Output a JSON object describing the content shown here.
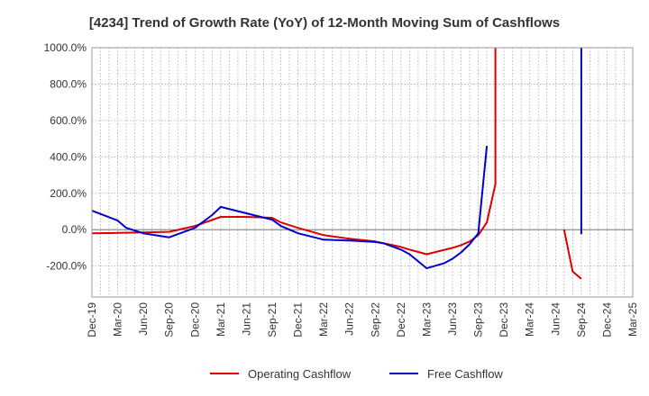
{
  "chart_data": {
    "type": "line",
    "title": "[4234]  Trend of Growth Rate (YoY) of 12-Month Moving Sum of Cashflows",
    "xlabel": "",
    "ylabel": "",
    "ylim": [
      -370,
      1000
    ],
    "y_ticks": [
      1000,
      800,
      600,
      400,
      200,
      0,
      -200
    ],
    "y_tick_labels": [
      "1000.0%",
      "800.0%",
      "600.0%",
      "400.0%",
      "200.0%",
      "0.0%",
      "-200.0%"
    ],
    "x_tick_labels": [
      "Dec-19",
      "Mar-20",
      "Jun-20",
      "Sep-20",
      "Dec-20",
      "Mar-21",
      "Jun-21",
      "Sep-21",
      "Dec-21",
      "Mar-22",
      "Jun-22",
      "Sep-22",
      "Dec-22",
      "Mar-23",
      "Jun-23",
      "Sep-23",
      "Dec-23",
      "Mar-24",
      "Jun-24",
      "Sep-24",
      "Dec-24",
      "Mar-25"
    ],
    "grid": true,
    "legend_position": "bottom",
    "series": [
      {
        "name": "Operating Cashflow",
        "color": "#dd0000",
        "points": [
          [
            "Dec-19",
            -20
          ],
          [
            "Mar-20",
            -18
          ],
          [
            "Jun-20",
            -15
          ],
          [
            "Sep-20",
            -12
          ],
          [
            "Dec-20",
            20
          ],
          [
            "Mar-21",
            70
          ],
          [
            "Jun-21",
            70
          ],
          [
            "Sep-21",
            65
          ],
          [
            "Oct-21",
            40
          ],
          [
            "Dec-21",
            10
          ],
          [
            "Mar-22",
            -30
          ],
          [
            "Jun-22",
            -50
          ],
          [
            "Sep-22",
            -65
          ],
          [
            "Dec-22",
            -95
          ],
          [
            "Jan-23",
            -110
          ],
          [
            "Mar-23",
            -135
          ],
          [
            "Jun-23",
            -100
          ],
          [
            "Jul-23",
            -85
          ],
          [
            "Aug-23",
            -65
          ],
          [
            "Sep-23",
            -30
          ],
          [
            "Oct-23",
            40
          ],
          [
            "Nov-23",
            250
          ],
          [
            "Nov-23",
            1000
          ],
          null,
          [
            "Jul-24",
            0
          ],
          [
            "Aug-24",
            -230
          ],
          [
            "Sep-24",
            -270
          ]
        ]
      },
      {
        "name": "Free Cashflow",
        "color": "#0000cc",
        "points": [
          [
            "Dec-19",
            105
          ],
          [
            "Mar-20",
            50
          ],
          [
            "Apr-20",
            10
          ],
          [
            "Jun-20",
            -20
          ],
          [
            "Sep-20",
            -42
          ],
          [
            "Dec-20",
            10
          ],
          [
            "Jan-21",
            45
          ],
          [
            "Feb-21",
            80
          ],
          [
            "Mar-21",
            125
          ],
          [
            "Jun-21",
            90
          ],
          [
            "Sep-21",
            55
          ],
          [
            "Oct-21",
            20
          ],
          [
            "Dec-21",
            -20
          ],
          [
            "Mar-22",
            -55
          ],
          [
            "Jun-22",
            -60
          ],
          [
            "Sep-22",
            -68
          ],
          [
            "Oct-22",
            -75
          ],
          [
            "Dec-22",
            -110
          ],
          [
            "Jan-23",
            -135
          ],
          [
            "Mar-23",
            -212
          ],
          [
            "May-23",
            -185
          ],
          [
            "Jun-23",
            -160
          ],
          [
            "Jul-23",
            -125
          ],
          [
            "Aug-23",
            -80
          ],
          [
            "Sep-23",
            -20
          ],
          [
            "Oct-23",
            460
          ],
          null,
          [
            "Sep-24",
            1000
          ],
          [
            "Sep-24",
            -25
          ]
        ]
      }
    ]
  }
}
